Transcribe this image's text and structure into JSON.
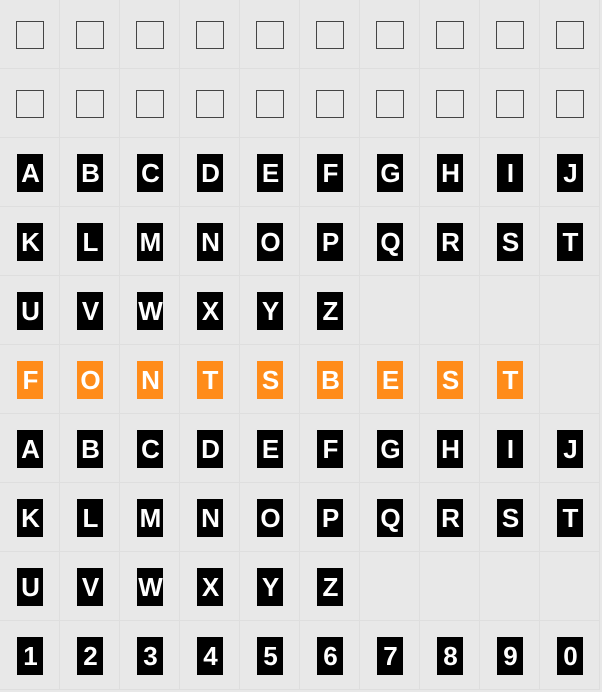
{
  "grid": {
    "columns": 10,
    "background_color": "#e8e8e8",
    "cell_border_color": "#dedede",
    "glyph_styles": {
      "empty": {
        "border": "#444444",
        "fill": "transparent"
      },
      "black": {
        "bg": "#000000",
        "fg": "#ffffff"
      },
      "orange": {
        "bg": "#ff8c1a",
        "fg": "#ffffff"
      }
    },
    "rows": [
      {
        "style": "empty",
        "cells": [
          "",
          "",
          "",
          "",
          "",
          "",
          "",
          "",
          "",
          ""
        ]
      },
      {
        "style": "empty",
        "cells": [
          "",
          "",
          "",
          "",
          "",
          "",
          "",
          "",
          "",
          ""
        ]
      },
      {
        "style": "black",
        "cells": [
          "A",
          "B",
          "C",
          "D",
          "E",
          "F",
          "G",
          "H",
          "I",
          "J"
        ]
      },
      {
        "style": "black",
        "cells": [
          "K",
          "L",
          "M",
          "N",
          "O",
          "P",
          "Q",
          "R",
          "S",
          "T"
        ]
      },
      {
        "style": "black",
        "cells": [
          "U",
          "V",
          "W",
          "X",
          "Y",
          "Z",
          "",
          "",
          "",
          ""
        ]
      },
      {
        "style": "orange",
        "cells": [
          "F",
          "O",
          "N",
          "T",
          "S",
          "B",
          "E",
          "S",
          "T",
          ""
        ]
      },
      {
        "style": "black",
        "cells": [
          "a",
          "b",
          "c",
          "d",
          "e",
          "f",
          "g",
          "h",
          "i",
          "j"
        ]
      },
      {
        "style": "black",
        "cells": [
          "k",
          "l",
          "m",
          "n",
          "o",
          "p",
          "q",
          "r",
          "s",
          "t"
        ]
      },
      {
        "style": "black",
        "cells": [
          "u",
          "v",
          "w",
          "x",
          "y",
          "z",
          "",
          "",
          "",
          ""
        ]
      },
      {
        "style": "black",
        "cells": [
          "1",
          "2",
          "3",
          "4",
          "5",
          "6",
          "7",
          "8",
          "9",
          "0"
        ]
      }
    ]
  }
}
